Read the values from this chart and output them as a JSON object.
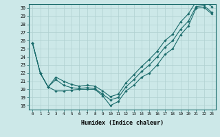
{
  "title": "",
  "xlabel": "Humidex (Indice chaleur)",
  "ylabel": "",
  "background_color": "#cce8e8",
  "grid_color": "#b0d0d0",
  "line_color": "#1a6b6b",
  "xlim": [
    -0.5,
    23.5
  ],
  "ylim": [
    17.5,
    30.5
  ],
  "yticks": [
    18,
    19,
    20,
    21,
    22,
    23,
    24,
    25,
    26,
    27,
    28,
    29,
    30
  ],
  "xticks": [
    0,
    1,
    2,
    3,
    4,
    5,
    6,
    7,
    8,
    9,
    10,
    11,
    12,
    13,
    14,
    15,
    16,
    17,
    18,
    19,
    20,
    21,
    22,
    23
  ],
  "series": [
    [
      25.7,
      22.0,
      20.3,
      19.8,
      19.8,
      19.9,
      20.0,
      20.0,
      20.0,
      19.2,
      18.0,
      18.5,
      19.8,
      20.5,
      21.5,
      22.0,
      23.0,
      24.3,
      25.0,
      26.7,
      27.8,
      30.0,
      30.1,
      29.3
    ],
    [
      25.7,
      22.0,
      20.3,
      21.2,
      20.5,
      20.2,
      20.1,
      20.2,
      20.1,
      19.4,
      18.7,
      19.0,
      20.3,
      21.2,
      22.2,
      23.0,
      24.0,
      25.2,
      26.0,
      27.4,
      28.4,
      30.2,
      30.3,
      29.5
    ],
    [
      25.7,
      22.0,
      20.3,
      21.5,
      21.0,
      20.6,
      20.4,
      20.5,
      20.4,
      19.8,
      19.1,
      19.4,
      20.8,
      21.8,
      22.8,
      23.7,
      24.7,
      26.0,
      26.8,
      28.3,
      29.3,
      30.8,
      30.9,
      30.2
    ]
  ]
}
